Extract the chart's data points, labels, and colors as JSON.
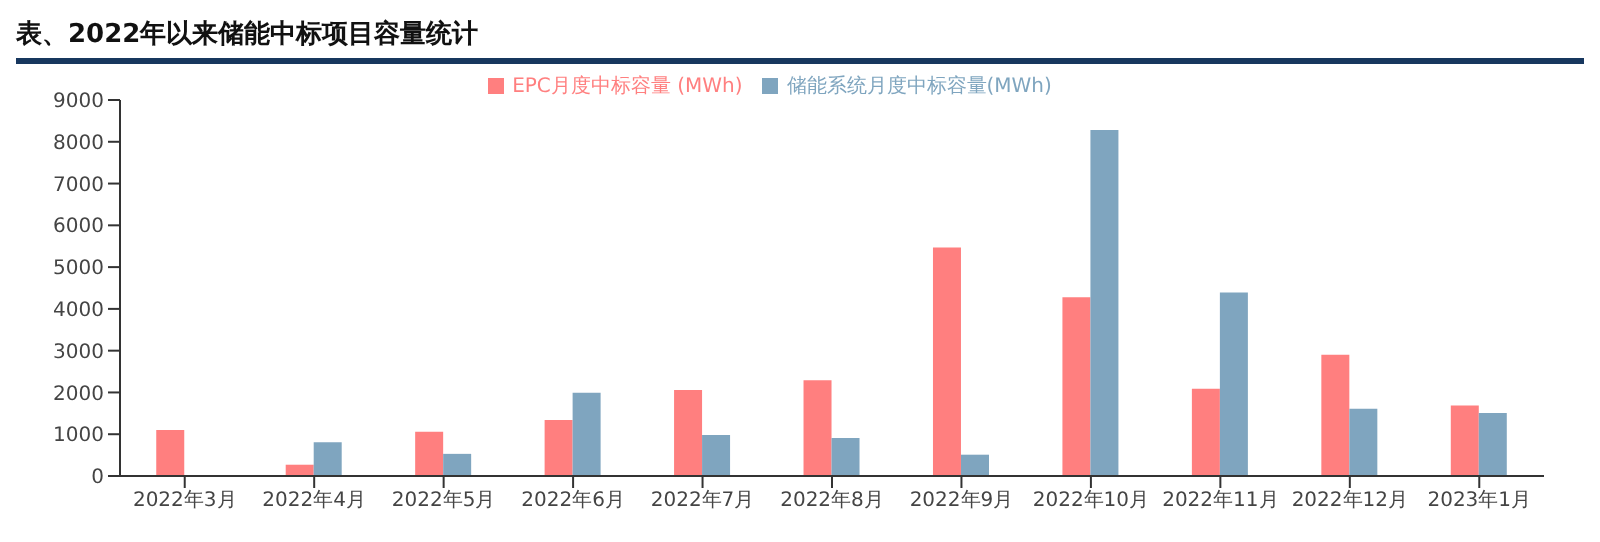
{
  "chart_data": {
    "type": "bar",
    "title": "表、2022年以来储能中标项目容量统计",
    "categories": [
      "2022年3月",
      "2022年4月",
      "2022年5月",
      "2022年6月",
      "2022年7月",
      "2022年8月",
      "2022年9月",
      "2022年10月",
      "2022年11月",
      "2022年12月",
      "2023年1月"
    ],
    "series": [
      {
        "name": "EPC月度中标容量 (MWh)",
        "color": "#ff7f7f",
        "values": [
          1100,
          270,
          1060,
          1340,
          2060,
          2290,
          5470,
          4280,
          2090,
          2900,
          1690
        ]
      },
      {
        "name": "储能系统月度中标容量(MWh)",
        "color": "#7fa5bf",
        "values": [
          null,
          810,
          530,
          1990,
          980,
          910,
          510,
          8280,
          4390,
          1610,
          1510
        ]
      }
    ],
    "ylim": [
      0,
      9000
    ],
    "yticks": [
      0,
      1000,
      2000,
      3000,
      4000,
      5000,
      6000,
      7000,
      8000,
      9000
    ],
    "grid": false,
    "legend": "top"
  }
}
